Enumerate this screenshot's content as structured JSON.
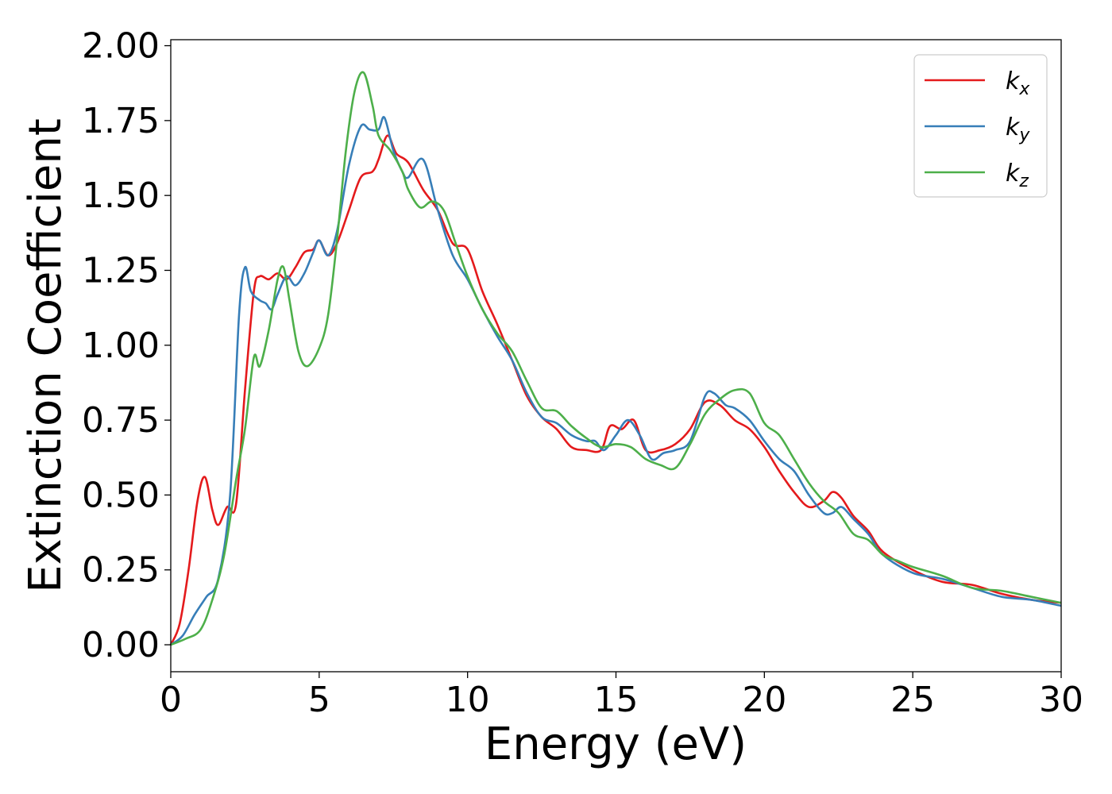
{
  "chart_data": {
    "type": "line",
    "title": "",
    "xlabel": "Energy (eV)",
    "ylabel": "Extinction Coefficient",
    "xlim": [
      0,
      30
    ],
    "ylim": [
      -0.09,
      2.02
    ],
    "xticks": [
      0,
      5,
      10,
      15,
      20,
      25,
      30
    ],
    "xtick_labels": [
      "0",
      "5",
      "10",
      "15",
      "20",
      "25",
      "30"
    ],
    "yticks": [
      0.0,
      0.25,
      0.5,
      0.75,
      1.0,
      1.25,
      1.5,
      1.75,
      2.0
    ],
    "ytick_labels": [
      "0.00",
      "0.25",
      "0.50",
      "0.75",
      "1.00",
      "1.25",
      "1.50",
      "1.75",
      "2.00"
    ],
    "grid": false,
    "legend_position": "top-right",
    "series": [
      {
        "name": "k",
        "subscript": "x",
        "color": "#e41a1c",
        "x": [
          0,
          0.3,
          0.6,
          0.9,
          1.15,
          1.4,
          1.6,
          1.9,
          2.2,
          2.5,
          2.8,
          3.0,
          3.3,
          3.6,
          3.9,
          4.2,
          4.5,
          4.8,
          5.0,
          5.3,
          5.6,
          6.0,
          6.4,
          6.8,
          7.0,
          7.3,
          7.6,
          8.0,
          8.5,
          9.0,
          9.5,
          10.0,
          10.5,
          11.0,
          11.5,
          12.0,
          12.5,
          13.0,
          13.5,
          14.0,
          14.5,
          14.8,
          15.2,
          15.6,
          16.0,
          16.5,
          17.0,
          17.5,
          18.0,
          18.5,
          19.0,
          19.5,
          20.0,
          20.5,
          21.0,
          21.5,
          22.0,
          22.3,
          22.6,
          23.0,
          23.5,
          24.0,
          25.0,
          26.0,
          27.0,
          28.0,
          29.0,
          30.0
        ],
        "y": [
          0.0,
          0.07,
          0.25,
          0.48,
          0.56,
          0.45,
          0.4,
          0.46,
          0.47,
          0.85,
          1.18,
          1.23,
          1.22,
          1.24,
          1.22,
          1.26,
          1.31,
          1.32,
          1.35,
          1.3,
          1.34,
          1.45,
          1.56,
          1.58,
          1.62,
          1.7,
          1.64,
          1.61,
          1.52,
          1.45,
          1.34,
          1.32,
          1.18,
          1.07,
          0.95,
          0.83,
          0.76,
          0.72,
          0.66,
          0.65,
          0.65,
          0.73,
          0.72,
          0.75,
          0.65,
          0.65,
          0.67,
          0.72,
          0.81,
          0.8,
          0.75,
          0.72,
          0.66,
          0.58,
          0.51,
          0.46,
          0.48,
          0.51,
          0.49,
          0.43,
          0.38,
          0.31,
          0.25,
          0.21,
          0.2,
          0.17,
          0.15,
          0.14
        ]
      },
      {
        "name": "k",
        "subscript": "y",
        "color": "#377eb8",
        "x": [
          0,
          0.4,
          0.8,
          1.2,
          1.6,
          2.0,
          2.3,
          2.5,
          2.7,
          3.0,
          3.2,
          3.4,
          3.6,
          3.9,
          4.2,
          4.5,
          4.8,
          5.0,
          5.3,
          5.6,
          6.0,
          6.4,
          6.7,
          7.0,
          7.2,
          7.5,
          7.8,
          8.0,
          8.5,
          9.0,
          9.5,
          10.0,
          10.5,
          11.0,
          11.5,
          12.0,
          12.5,
          13.0,
          13.5,
          14.0,
          14.3,
          14.6,
          15.0,
          15.4,
          15.8,
          16.2,
          16.6,
          17.0,
          17.5,
          18.0,
          18.3,
          18.7,
          19.0,
          19.5,
          20.0,
          20.5,
          21.0,
          21.5,
          22.0,
          22.3,
          22.6,
          23.0,
          23.5,
          24.0,
          25.0,
          26.0,
          27.0,
          28.0,
          29.0,
          30.0
        ],
        "y": [
          0.0,
          0.03,
          0.1,
          0.16,
          0.22,
          0.5,
          1.1,
          1.26,
          1.18,
          1.15,
          1.14,
          1.12,
          1.17,
          1.23,
          1.2,
          1.24,
          1.31,
          1.35,
          1.3,
          1.38,
          1.6,
          1.73,
          1.72,
          1.72,
          1.76,
          1.65,
          1.58,
          1.56,
          1.62,
          1.45,
          1.3,
          1.22,
          1.12,
          1.03,
          0.95,
          0.84,
          0.76,
          0.74,
          0.7,
          0.68,
          0.68,
          0.65,
          0.7,
          0.75,
          0.7,
          0.62,
          0.64,
          0.65,
          0.68,
          0.83,
          0.84,
          0.8,
          0.79,
          0.75,
          0.68,
          0.62,
          0.58,
          0.5,
          0.44,
          0.44,
          0.46,
          0.42,
          0.37,
          0.3,
          0.24,
          0.22,
          0.19,
          0.16,
          0.15,
          0.13
        ]
      },
      {
        "name": "k",
        "subscript": "z",
        "color": "#4daf4a",
        "x": [
          0,
          0.5,
          1.0,
          1.4,
          1.8,
          2.2,
          2.5,
          2.8,
          3.0,
          3.3,
          3.6,
          3.8,
          4.0,
          4.3,
          4.6,
          5.0,
          5.3,
          5.6,
          5.9,
          6.2,
          6.5,
          6.8,
          7.0,
          7.4,
          7.8,
          8.0,
          8.4,
          8.8,
          9.2,
          9.6,
          10.0,
          10.5,
          11.0,
          11.5,
          12.0,
          12.5,
          13.0,
          13.5,
          14.0,
          14.5,
          15.0,
          15.5,
          16.0,
          16.5,
          17.0,
          17.5,
          18.0,
          18.5,
          19.0,
          19.5,
          20.0,
          20.5,
          21.0,
          21.5,
          22.0,
          22.5,
          23.0,
          23.5,
          24.0,
          24.5,
          25.0,
          26.0,
          27.0,
          28.0,
          29.0,
          30.0
        ],
        "y": [
          0.0,
          0.02,
          0.05,
          0.15,
          0.3,
          0.55,
          0.72,
          0.96,
          0.93,
          1.05,
          1.22,
          1.26,
          1.15,
          0.98,
          0.93,
          0.99,
          1.1,
          1.35,
          1.65,
          1.85,
          1.91,
          1.8,
          1.7,
          1.65,
          1.58,
          1.52,
          1.46,
          1.48,
          1.45,
          1.34,
          1.23,
          1.12,
          1.04,
          0.98,
          0.88,
          0.79,
          0.78,
          0.73,
          0.69,
          0.66,
          0.67,
          0.66,
          0.62,
          0.6,
          0.59,
          0.67,
          0.77,
          0.82,
          0.85,
          0.84,
          0.74,
          0.7,
          0.62,
          0.54,
          0.48,
          0.44,
          0.37,
          0.35,
          0.3,
          0.28,
          0.26,
          0.23,
          0.19,
          0.18,
          0.16,
          0.14
        ]
      }
    ]
  }
}
